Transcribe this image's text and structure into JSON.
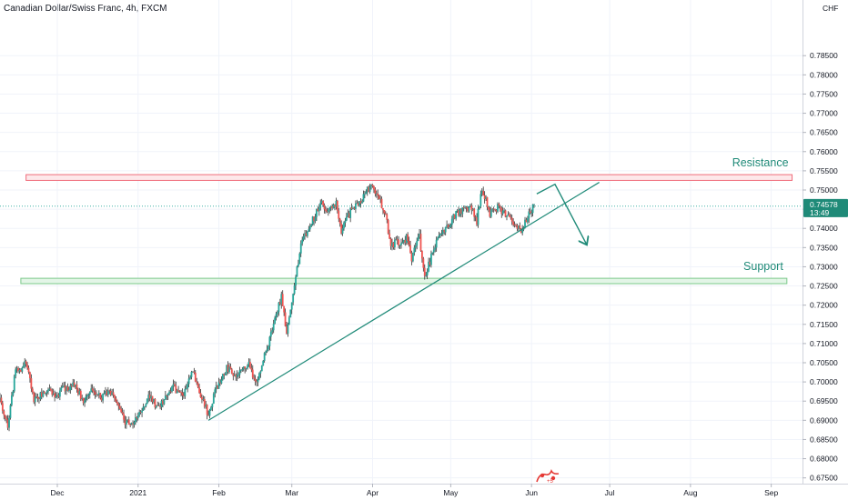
{
  "header": {
    "symbol_title": "Canadian Dollar/Swiss Franc, 4h, FXCM"
  },
  "colors": {
    "up_candle": "#26a69a",
    "down_candle": "#ef5350",
    "wick": "#333333",
    "resistance_fill": "#fde8ea",
    "resistance_border": "#f06b7a",
    "support_fill": "#e3f5e7",
    "support_border": "#7bc98a",
    "trendline": "#1f8a78",
    "price_label_bg": "#1f8a78",
    "current_price_line": "#26a69a"
  },
  "watermark_icon": "tradingview-logo-icon",
  "chart_data": {
    "type": "candlestick",
    "title": "Canadian Dollar/Swiss Franc, 4h, FXCM",
    "ylabel": "CHF",
    "currency_label": "CHF",
    "y_scale": "linear",
    "ylim": [
      0.6735,
      0.7995
    ],
    "xlim": [
      "2020-11-09",
      "2021-09-13"
    ],
    "y_ticks": [
      "0.67500",
      "0.68000",
      "0.68500",
      "0.69000",
      "0.69500",
      "0.70000",
      "0.70500",
      "0.71000",
      "0.71500",
      "0.72000",
      "0.72500",
      "0.73000",
      "0.73500",
      "0.74000",
      "0.74500",
      "0.75000",
      "0.75500",
      "0.76000",
      "0.76500",
      "0.77000",
      "0.77500",
      "0.78000",
      "0.78500"
    ],
    "x_ticks": [
      {
        "label": "Dec",
        "date": "2020-12-01"
      },
      {
        "label": "2021",
        "date": "2021-01-01"
      },
      {
        "label": "Feb",
        "date": "2021-02-01"
      },
      {
        "label": "Mar",
        "date": "2021-03-01"
      },
      {
        "label": "Apr",
        "date": "2021-04-01"
      },
      {
        "label": "May",
        "date": "2021-05-01"
      },
      {
        "label": "Jun",
        "date": "2021-06-01"
      },
      {
        "label": "Jul",
        "date": "2021-07-01"
      },
      {
        "label": "Aug",
        "date": "2021-08-01"
      },
      {
        "label": "Sep",
        "date": "2021-09-01"
      }
    ],
    "current_price": {
      "value": 0.74578,
      "text": "0.74578",
      "countdown": "13:49"
    },
    "close_path": [
      [
        "2020-11-09",
        0.695
      ],
      [
        "2020-11-12",
        0.689
      ],
      [
        "2020-11-15",
        0.703
      ],
      [
        "2020-11-19",
        0.7045
      ],
      [
        "2020-11-22",
        0.6955
      ],
      [
        "2020-11-27",
        0.6975
      ],
      [
        "2020-12-01",
        0.6965
      ],
      [
        "2020-12-04",
        0.6985
      ],
      [
        "2020-12-08",
        0.699
      ],
      [
        "2020-12-11",
        0.695
      ],
      [
        "2020-12-15",
        0.698
      ],
      [
        "2020-12-18",
        0.696
      ],
      [
        "2020-12-22",
        0.6975
      ],
      [
        "2020-12-27",
        0.6895
      ],
      [
        "2020-12-31",
        0.69
      ],
      [
        "2021-01-05",
        0.6965
      ],
      [
        "2021-01-09",
        0.693
      ],
      [
        "2021-01-14",
        0.699
      ],
      [
        "2021-01-18",
        0.696
      ],
      [
        "2021-01-22",
        0.703
      ],
      [
        "2021-01-25",
        0.696
      ],
      [
        "2021-01-28",
        0.6915
      ],
      [
        "2021-01-31",
        0.6985
      ],
      [
        "2021-02-04",
        0.704
      ],
      [
        "2021-02-08",
        0.7015
      ],
      [
        "2021-02-12",
        0.705
      ],
      [
        "2021-02-15",
        0.7
      ],
      [
        "2021-02-19",
        0.7075
      ],
      [
        "2021-02-22",
        0.7145
      ],
      [
        "2021-02-25",
        0.7225
      ],
      [
        "2021-02-27",
        0.713
      ],
      [
        "2021-03-02",
        0.726
      ],
      [
        "2021-03-05",
        0.737
      ],
      [
        "2021-03-09",
        0.742
      ],
      [
        "2021-03-12",
        0.7465
      ],
      [
        "2021-03-15",
        0.7445
      ],
      [
        "2021-03-18",
        0.747
      ],
      [
        "2021-03-20",
        0.7395
      ],
      [
        "2021-03-24",
        0.745
      ],
      [
        "2021-03-27",
        0.747
      ],
      [
        "2021-03-30",
        0.75
      ],
      [
        "2021-04-01",
        0.7515
      ],
      [
        "2021-04-03",
        0.7485
      ],
      [
        "2021-04-06",
        0.744
      ],
      [
        "2021-04-08",
        0.7355
      ],
      [
        "2021-04-11",
        0.7365
      ],
      [
        "2021-04-14",
        0.7375
      ],
      [
        "2021-04-16",
        0.732
      ],
      [
        "2021-04-19",
        0.738
      ],
      [
        "2021-04-21",
        0.7265
      ],
      [
        "2021-04-24",
        0.734
      ],
      [
        "2021-04-27",
        0.7385
      ],
      [
        "2021-04-30",
        0.741
      ],
      [
        "2021-05-03",
        0.7435
      ],
      [
        "2021-05-06",
        0.745
      ],
      [
        "2021-05-09",
        0.7455
      ],
      [
        "2021-05-11",
        0.742
      ],
      [
        "2021-05-13",
        0.7505
      ],
      [
        "2021-05-16",
        0.744
      ],
      [
        "2021-05-19",
        0.7455
      ],
      [
        "2021-05-22",
        0.744
      ],
      [
        "2021-05-25",
        0.7415
      ],
      [
        "2021-05-28",
        0.7395
      ],
      [
        "2021-05-31",
        0.744
      ],
      [
        "2021-06-02",
        0.7458
      ]
    ],
    "drawings": {
      "resistance_zone": {
        "label": "Resistance",
        "y_low": 0.7525,
        "y_high": 0.754,
        "x_start": "2020-11-19",
        "x_end": "2021-09-09"
      },
      "support_zone": {
        "label": "Support",
        "y_low": 0.7256,
        "y_high": 0.727,
        "x_start": "2020-11-17",
        "x_end": "2021-09-07"
      },
      "trendline": [
        [
          "2021-01-28",
          0.69
        ],
        [
          "2021-06-27",
          0.752
        ]
      ],
      "projection_path": [
        [
          "2021-06-03",
          0.749
        ],
        [
          "2021-06-10",
          0.7515
        ],
        [
          "2021-06-22",
          0.736
        ]
      ]
    }
  }
}
